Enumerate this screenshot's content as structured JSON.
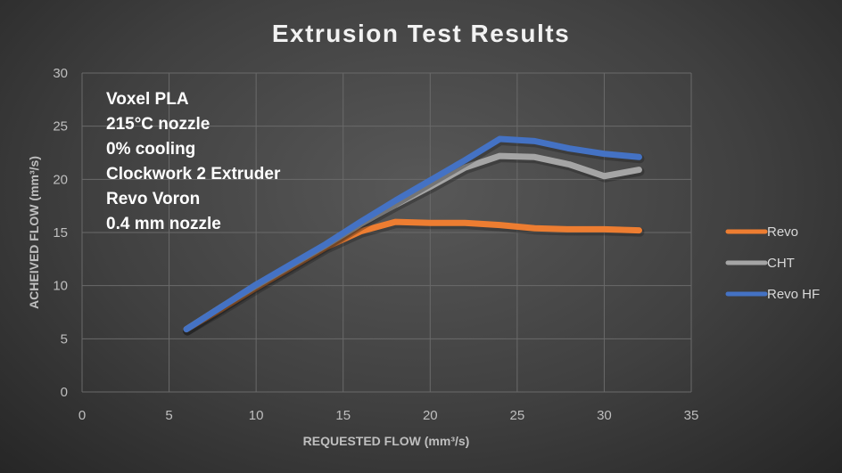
{
  "chart_data": {
    "type": "line",
    "title": "Extrusion Test Results",
    "xlabel": "REQUESTED FLOW (mm³/s)",
    "ylabel": "ACHEIVED FLOW (mm³/s)",
    "xlim": [
      0,
      35
    ],
    "ylim": [
      0,
      30
    ],
    "xticks": [
      0,
      5,
      10,
      15,
      20,
      25,
      30,
      35
    ],
    "yticks": [
      0,
      5,
      10,
      15,
      20,
      25,
      30
    ],
    "grid": true,
    "legend_position": "right",
    "annotations": [
      "Voxel PLA",
      "215°C nozzle",
      "0% cooling",
      "Clockwork 2 Extruder",
      "Revo Voron",
      "0.4 mm nozzle"
    ],
    "series": [
      {
        "name": "Revo",
        "color": "#ed7d31",
        "x": [
          6,
          8,
          10,
          12,
          14,
          16,
          18,
          20,
          22,
          24,
          26,
          28,
          30,
          32
        ],
        "y": [
          5.9,
          7.8,
          9.8,
          11.7,
          13.6,
          15.1,
          16.0,
          15.9,
          15.9,
          15.7,
          15.4,
          15.3,
          15.3,
          15.2
        ]
      },
      {
        "name": "CHT",
        "color": "#a5a5a5",
        "x": [
          6,
          8,
          10,
          12,
          14,
          16,
          18,
          20,
          22,
          24,
          26,
          28,
          30,
          32
        ],
        "y": [
          5.9,
          8.0,
          10.0,
          11.9,
          13.8,
          15.8,
          17.6,
          19.3,
          21.1,
          22.2,
          22.1,
          21.4,
          20.3,
          20.9
        ]
      },
      {
        "name": "Revo HF",
        "color": "#4472c4",
        "x": [
          6,
          8,
          10,
          12,
          14,
          16,
          18,
          20,
          22,
          24,
          26,
          28,
          30,
          32
        ],
        "y": [
          5.9,
          8.0,
          10.1,
          12.0,
          13.9,
          16.0,
          18.0,
          19.9,
          21.8,
          23.8,
          23.6,
          22.9,
          22.4,
          22.1
        ]
      }
    ]
  }
}
